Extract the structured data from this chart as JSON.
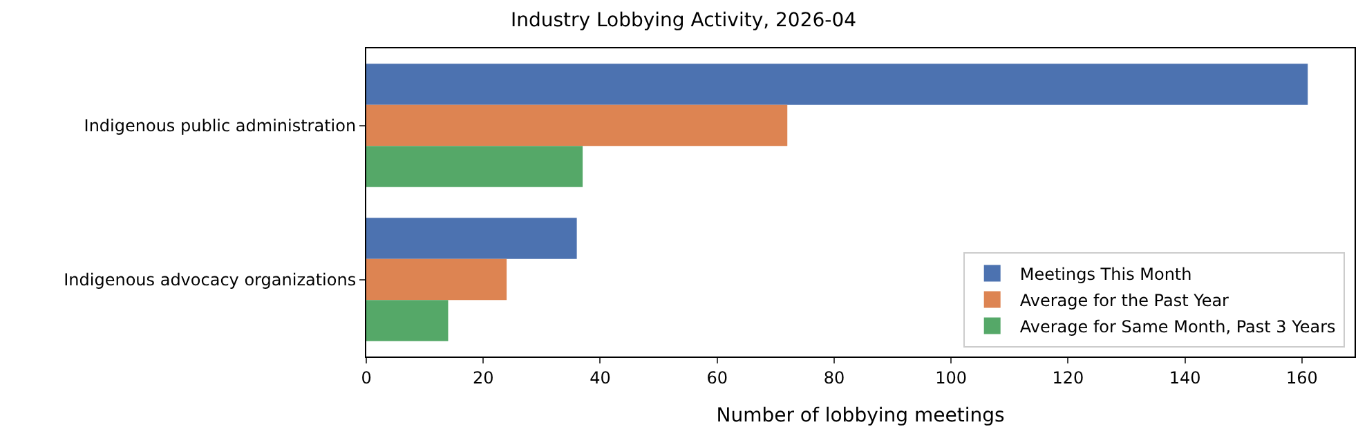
{
  "chart_data": {
    "type": "bar",
    "orientation": "horizontal",
    "title": "Industry Lobbying Activity, 2026-04",
    "xlabel": "Number of lobbying meetings",
    "categories": [
      "Indigenous public administration",
      "Indigenous advocacy organizations"
    ],
    "series": [
      {
        "name": "Meetings This Month",
        "color": "#4c72b0",
        "values": [
          161,
          36
        ]
      },
      {
        "name": "Average for the Past Year",
        "color": "#dd8452",
        "values": [
          72,
          24
        ]
      },
      {
        "name": "Average for Same Month, Past 3 Years",
        "color": "#55a868",
        "values": [
          37,
          14
        ]
      }
    ],
    "xlim": [
      0,
      169
    ],
    "xticks": [
      0,
      20,
      40,
      60,
      80,
      100,
      120,
      140,
      160
    ],
    "grid": false,
    "legend": "bottom right"
  }
}
